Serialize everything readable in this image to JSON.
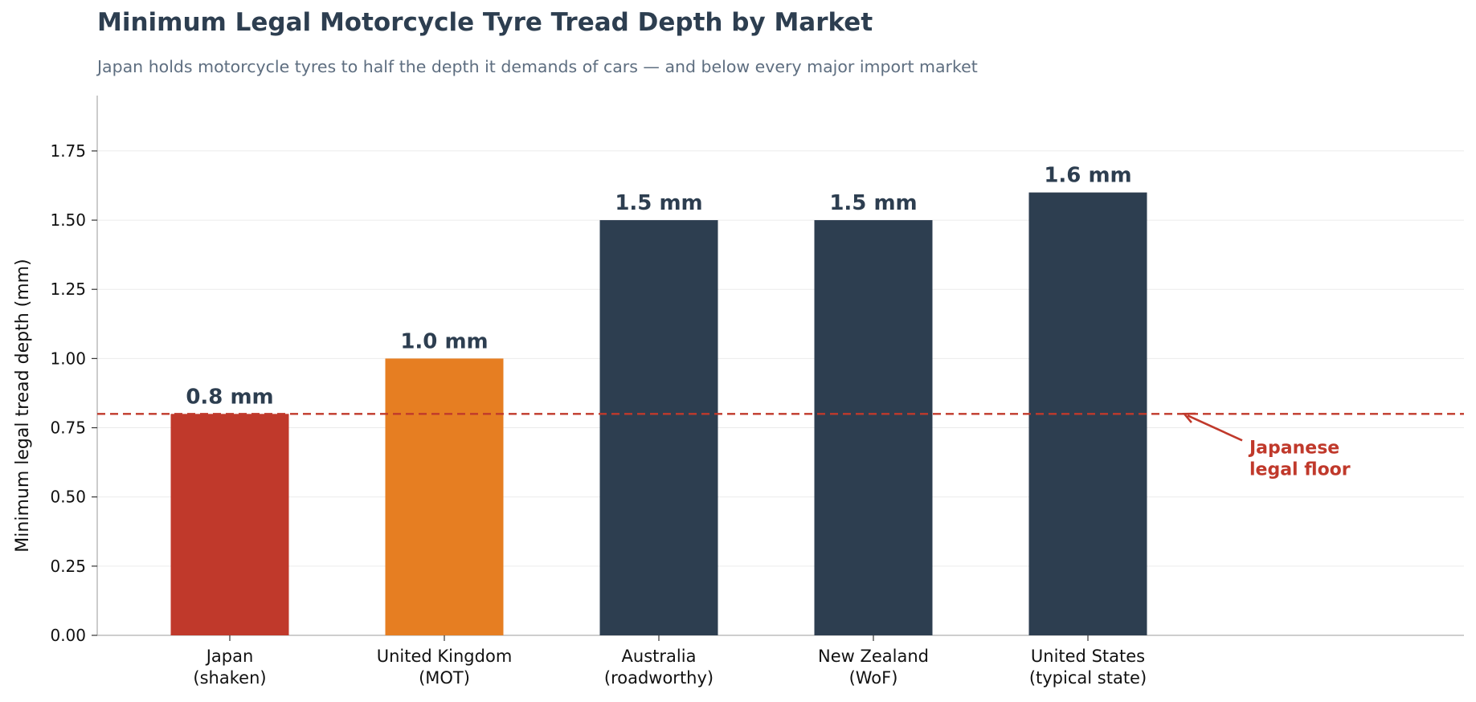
{
  "chart_data": {
    "type": "bar",
    "title": "Minimum Legal Motorcycle Tyre Tread Depth by Market",
    "subtitle": "Japan holds motorcycle tyres to half the depth it demands of cars — and below every major import market",
    "xlabel": "",
    "ylabel": "Minimum legal tread depth (mm)",
    "categories": [
      [
        "Japan",
        "(shaken)"
      ],
      [
        "United Kingdom",
        "(MOT)"
      ],
      [
        "Australia",
        "(roadworthy)"
      ],
      [
        "New Zealand",
        "(WoF)"
      ],
      [
        "United States",
        "(typical state)"
      ]
    ],
    "values": [
      0.8,
      1.0,
      1.5,
      1.5,
      1.6
    ],
    "value_labels": [
      "0.8 mm",
      "1.0 mm",
      "1.5 mm",
      "1.5 mm",
      "1.6 mm"
    ],
    "colors": [
      "#c0392b",
      "#e67e22",
      "#2d3e50",
      "#2d3e50",
      "#2d3e50"
    ],
    "ylim": [
      0,
      1.95
    ],
    "yticks": [
      0,
      0.25,
      0.5,
      0.75,
      1.0,
      1.25,
      1.5,
      1.75
    ],
    "ytick_labels": [
      "0.00",
      "0.25",
      "0.50",
      "0.75",
      "1.00",
      "1.25",
      "1.50",
      "1.75"
    ],
    "grid": "horizontal",
    "reference_line": {
      "value": 0.8,
      "style": "dashed",
      "color": "#c0392b",
      "annotation": [
        "Japanese",
        "legal floor"
      ]
    },
    "label_color": "#2d3e50",
    "axis_color": "#b0b0b0",
    "grid_color": "#ebebeb"
  }
}
